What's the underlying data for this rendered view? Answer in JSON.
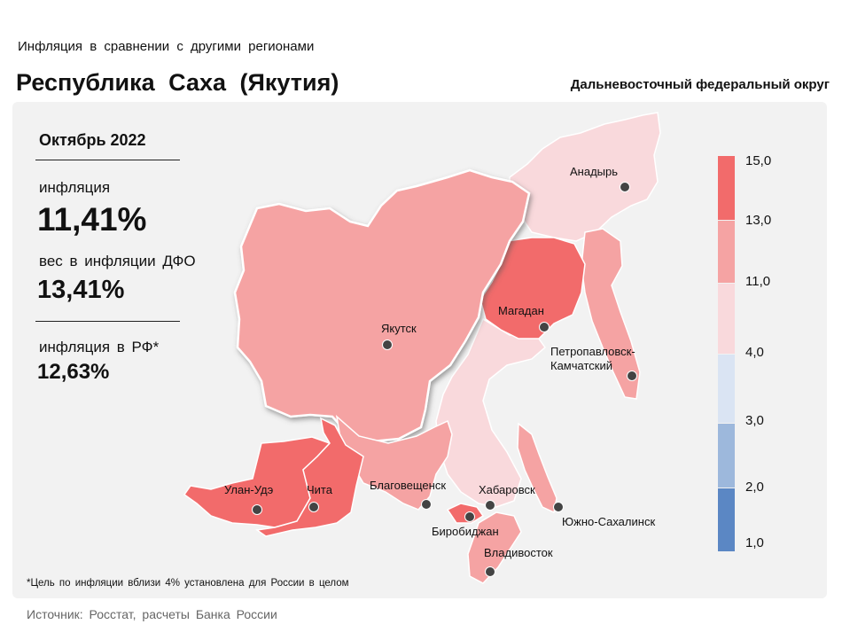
{
  "header": {
    "supertitle": "Инфляция  в сравнении  с другими  регионами",
    "title": "Республика  Саха  (Якутия)",
    "district": "Дальневосточный федеральный округ"
  },
  "stats": {
    "period": "Октябрь 2022",
    "inflation_label": "инфляция",
    "inflation_value": "11,41%",
    "weight_label": "вес в инфляции  ДФО",
    "weight_value": "13,41%",
    "rf_label": "инфляция  в РФ*",
    "rf_value": "12,63%"
  },
  "legend": {
    "ticks": [
      "15,0",
      "13,0",
      "11,0",
      "4,0",
      "3,0",
      "2,0",
      "1,0"
    ],
    "colors": [
      "#f26b6b",
      "#f5a3a3",
      "#f9d9dc",
      "#dae4f3",
      "#9db8dc",
      "#5b87c4"
    ]
  },
  "map": {
    "cities": [
      {
        "name": "Анадырь"
      },
      {
        "name": "Магадан"
      },
      {
        "name": "Якутск"
      },
      {
        "name": "Петропавловск-\nКамчатский"
      },
      {
        "name": "Улан-Удэ"
      },
      {
        "name": "Чита"
      },
      {
        "name": "Благовещенск"
      },
      {
        "name": "Хабаровск"
      },
      {
        "name": "Биробиджан"
      },
      {
        "name": "Южно-Сахалинск"
      },
      {
        "name": "Владивосток"
      }
    ]
  },
  "footnote": "*Цель по инфляции вблизи 4% установлена для России в целом",
  "source": "Источник: Росстат,  расчеты Банка  России"
}
